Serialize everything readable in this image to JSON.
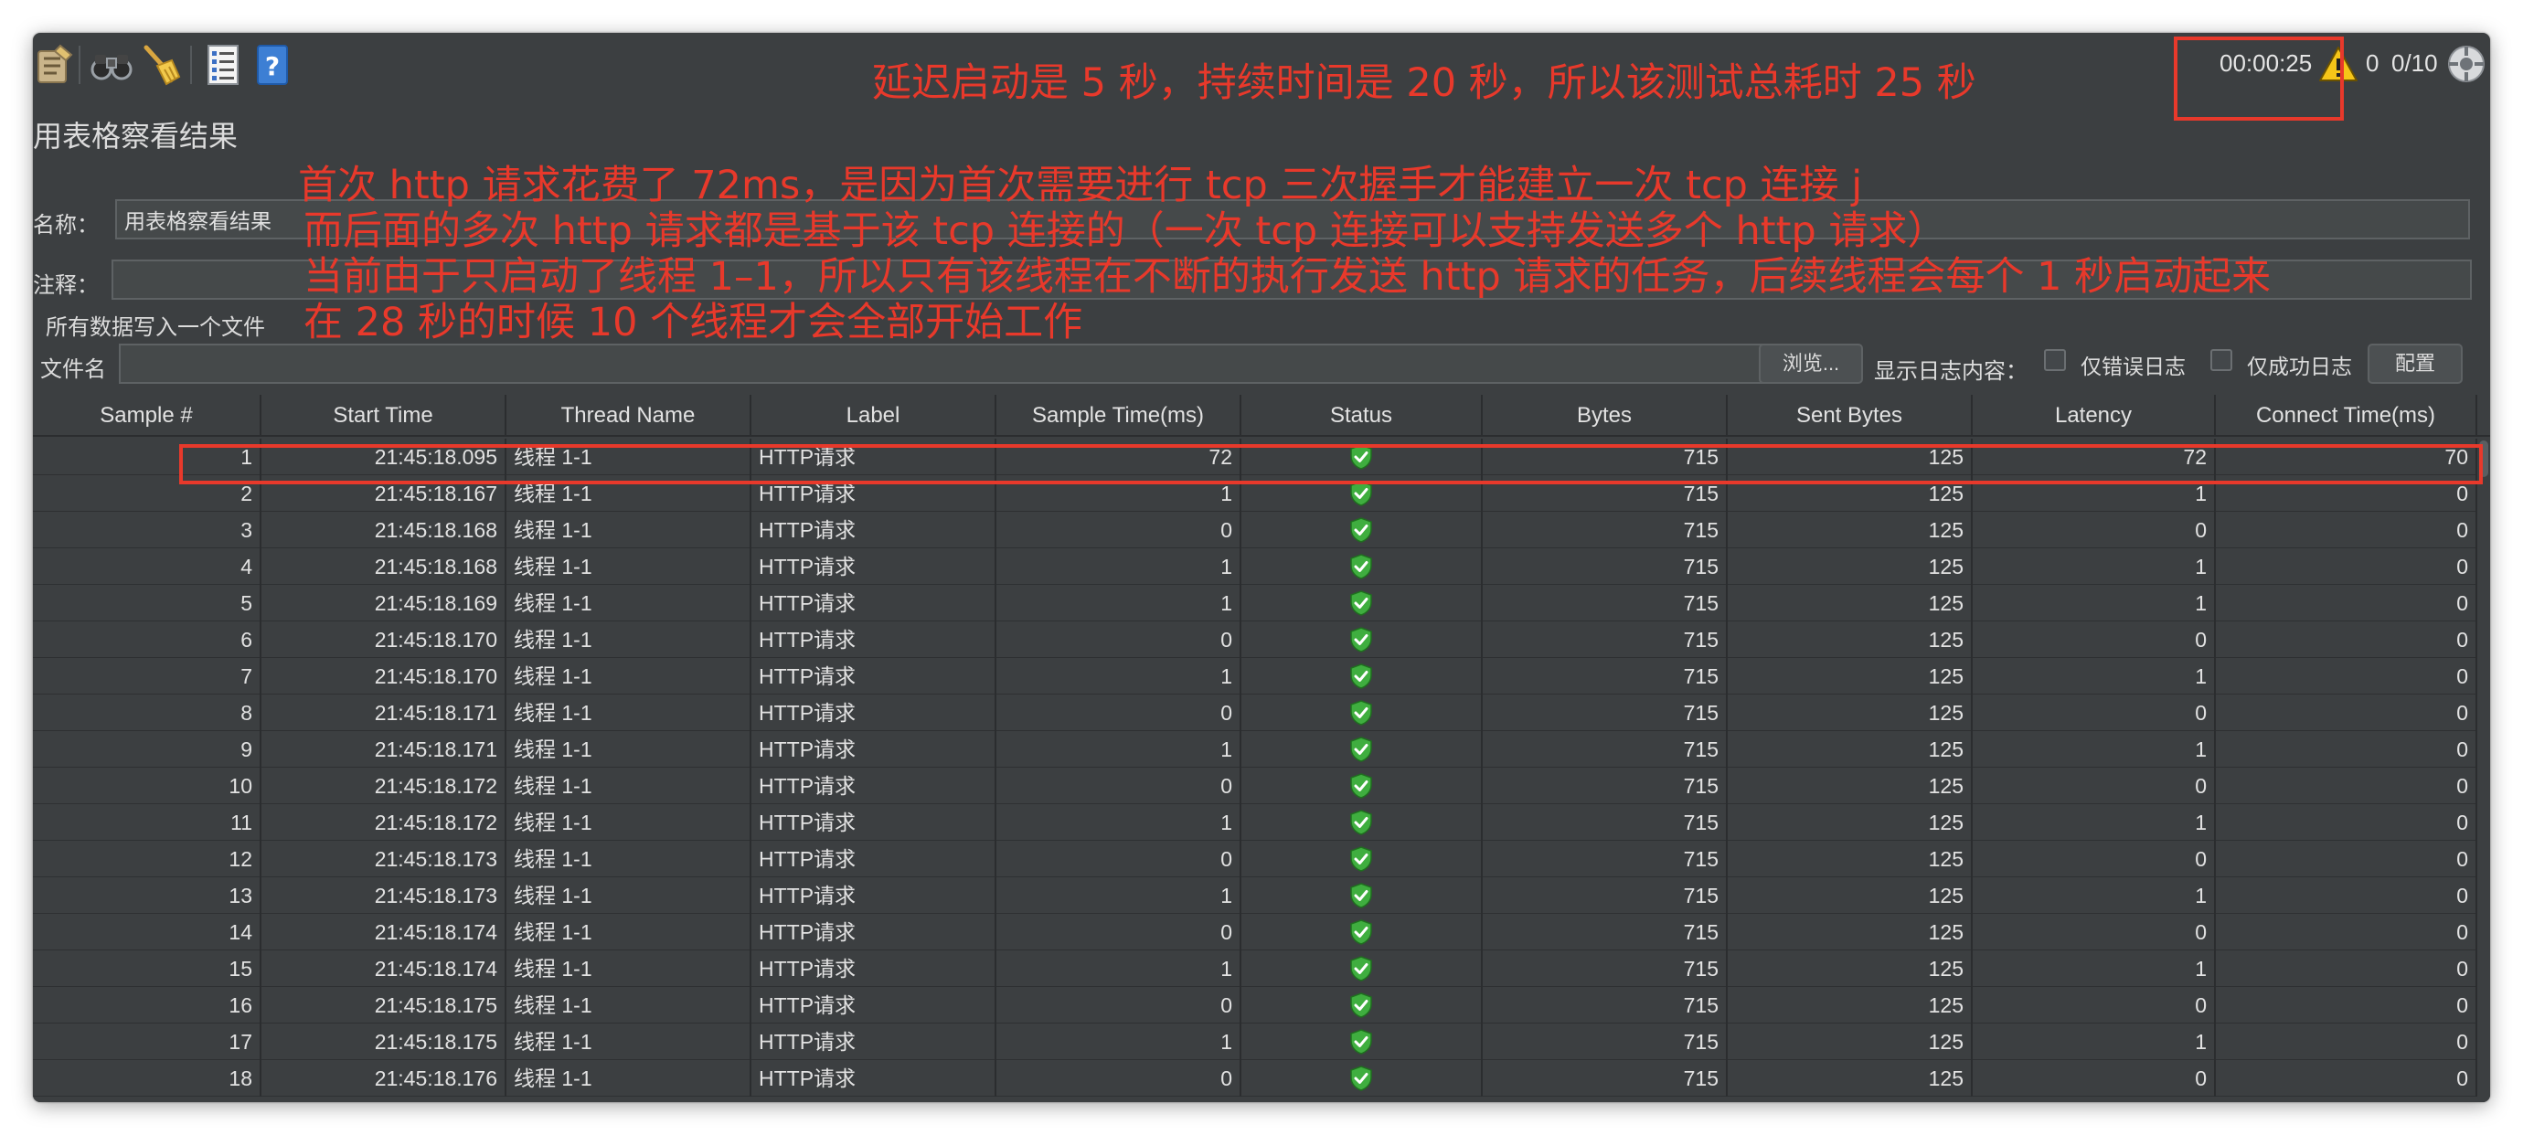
{
  "toolbar": {
    "icons": [
      "clear-icon",
      "binoculars-icon",
      "broom-icon",
      "list-icon",
      "help-icon"
    ],
    "timer": "00:00:25",
    "error_count": "0",
    "thread_count": "0/10",
    "warning_color": "#f5c518"
  },
  "panel": {
    "title": "用表格察看结果",
    "name_label": "名称：",
    "name_value": "用表格察看结果",
    "comment_label": "注释：",
    "comment_value": "",
    "file_section_label": "所有数据写入一个文件",
    "file_label": "文件名",
    "file_value": "",
    "browse_button": "浏览...",
    "log_label": "显示日志内容：",
    "errors_only_label": "仅错误日志",
    "success_only_label": "仅成功日志",
    "config_button": "配置"
  },
  "table": {
    "columns": [
      "Sample #",
      "Start Time",
      "Thread Name",
      "Label",
      "Sample Time(ms)",
      "Status",
      "Bytes",
      "Sent Bytes",
      "Latency",
      "Connect Time(ms)"
    ],
    "rows": [
      [
        "1",
        "21:45:18.095",
        "线程 1-1",
        "HTTP请求",
        "72",
        "success",
        "715",
        "125",
        "72",
        "70"
      ],
      [
        "2",
        "21:45:18.167",
        "线程 1-1",
        "HTTP请求",
        "1",
        "success",
        "715",
        "125",
        "1",
        "0"
      ],
      [
        "3",
        "21:45:18.168",
        "线程 1-1",
        "HTTP请求",
        "0",
        "success",
        "715",
        "125",
        "0",
        "0"
      ],
      [
        "4",
        "21:45:18.168",
        "线程 1-1",
        "HTTP请求",
        "1",
        "success",
        "715",
        "125",
        "1",
        "0"
      ],
      [
        "5",
        "21:45:18.169",
        "线程 1-1",
        "HTTP请求",
        "1",
        "success",
        "715",
        "125",
        "1",
        "0"
      ],
      [
        "6",
        "21:45:18.170",
        "线程 1-1",
        "HTTP请求",
        "0",
        "success",
        "715",
        "125",
        "0",
        "0"
      ],
      [
        "7",
        "21:45:18.170",
        "线程 1-1",
        "HTTP请求",
        "1",
        "success",
        "715",
        "125",
        "1",
        "0"
      ],
      [
        "8",
        "21:45:18.171",
        "线程 1-1",
        "HTTP请求",
        "0",
        "success",
        "715",
        "125",
        "0",
        "0"
      ],
      [
        "9",
        "21:45:18.171",
        "线程 1-1",
        "HTTP请求",
        "1",
        "success",
        "715",
        "125",
        "1",
        "0"
      ],
      [
        "10",
        "21:45:18.172",
        "线程 1-1",
        "HTTP请求",
        "0",
        "success",
        "715",
        "125",
        "0",
        "0"
      ],
      [
        "11",
        "21:45:18.172",
        "线程 1-1",
        "HTTP请求",
        "1",
        "success",
        "715",
        "125",
        "1",
        "0"
      ],
      [
        "12",
        "21:45:18.173",
        "线程 1-1",
        "HTTP请求",
        "0",
        "success",
        "715",
        "125",
        "0",
        "0"
      ],
      [
        "13",
        "21:45:18.173",
        "线程 1-1",
        "HTTP请求",
        "1",
        "success",
        "715",
        "125",
        "1",
        "0"
      ],
      [
        "14",
        "21:45:18.174",
        "线程 1-1",
        "HTTP请求",
        "0",
        "success",
        "715",
        "125",
        "0",
        "0"
      ],
      [
        "15",
        "21:45:18.174",
        "线程 1-1",
        "HTTP请求",
        "1",
        "success",
        "715",
        "125",
        "1",
        "0"
      ],
      [
        "16",
        "21:45:18.175",
        "线程 1-1",
        "HTTP请求",
        "0",
        "success",
        "715",
        "125",
        "0",
        "0"
      ],
      [
        "17",
        "21:45:18.175",
        "线程 1-1",
        "HTTP请求",
        "1",
        "success",
        "715",
        "125",
        "1",
        "0"
      ],
      [
        "18",
        "21:45:18.176",
        "线程 1-1",
        "HTTP请求",
        "0",
        "success",
        "715",
        "125",
        "0",
        "0"
      ]
    ],
    "status_icon": "green-shield-check-icon",
    "status_color": "#3fae3f"
  },
  "annotations": {
    "color": "#e8392b",
    "top": "延迟启动是 5 秒，持续时间是 20 秒，所以该测试总耗时 25 秒",
    "lines": [
      "首次 http 请求花费了 72ms，是因为首次需要进行 tcp 三次握手才能建立一次 tcp 连接 j",
      "而后面的多次 http 请求都是基于该 tcp 连接的（一次 tcp 连接可以支持发送多个 http 请求）",
      "当前由于只启动了线程 1–1，所以只有该线程在不断的执行发送 http 请求的任务，后续线程会每个 1 秒启动起来",
      "在 28 秒的时候 10 个线程才会全部开始工作"
    ]
  }
}
